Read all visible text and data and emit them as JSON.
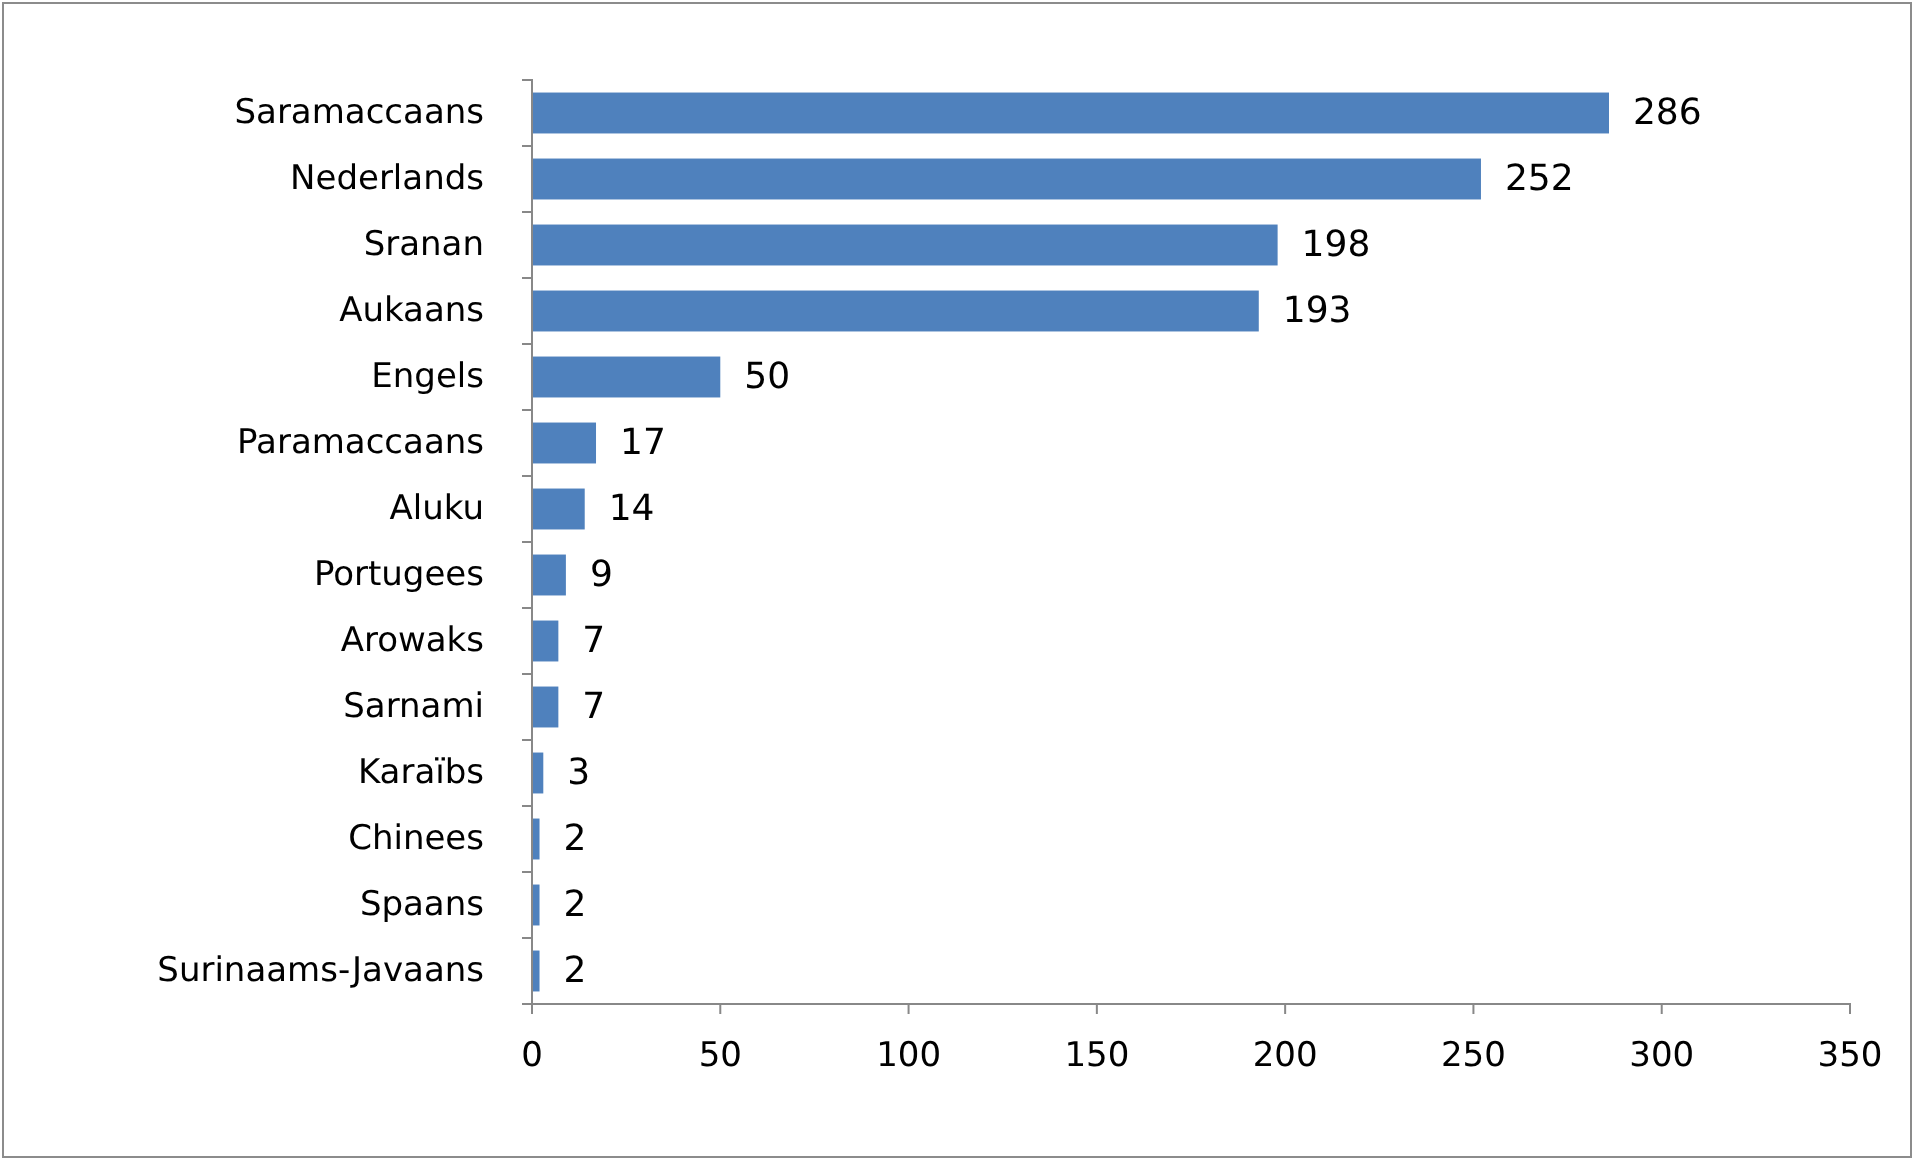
{
  "chart_data": {
    "type": "bar",
    "orientation": "horizontal",
    "categories": [
      "Saramaccaans",
      "Nederlands",
      "Sranan",
      "Aukaans",
      "Engels",
      "Paramaccaans",
      "Aluku",
      "Portugees",
      "Arowaks",
      "Sarnami",
      "Karaïbs",
      "Chinees",
      "Spaans",
      "Surinaams-Javaans"
    ],
    "values": [
      286,
      252,
      198,
      193,
      50,
      17,
      14,
      9,
      7,
      7,
      3,
      2,
      2,
      2
    ],
    "color": "#4f81bd",
    "xlim": [
      0,
      350
    ],
    "xticks": [
      0,
      50,
      100,
      150,
      200,
      250,
      300,
      350
    ],
    "grid": false,
    "data_labels": true
  }
}
